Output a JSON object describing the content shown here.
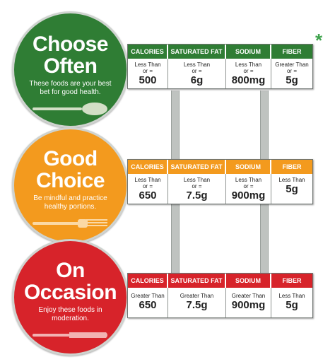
{
  "columns": [
    "CALORIES",
    "SATURATED FAT",
    "SODIUM",
    "FIBER"
  ],
  "asterisk": "*",
  "tiers": [
    {
      "title_line1": "Choose",
      "title_line2": "Often",
      "subtitle": "These foods are your best bet for good health.",
      "utensil": "spoon-icon",
      "color": "#2f7d34",
      "values": [
        {
          "prefix": "Less Than",
          "op": "or =",
          "amount": "500"
        },
        {
          "prefix": "Less Than",
          "op": "or =",
          "amount": "6g"
        },
        {
          "prefix": "Less Than",
          "op": "or =",
          "amount": "800mg"
        },
        {
          "prefix": "Greater Than",
          "op": "or =",
          "amount": "5g"
        }
      ]
    },
    {
      "title_line1": "Good",
      "title_line2": "Choice",
      "subtitle": "Be mindful and practice healthy portions.",
      "utensil": "fork-icon",
      "color": "#f39a1e",
      "values": [
        {
          "prefix": "Less Than",
          "op": "or =",
          "amount": "650"
        },
        {
          "prefix": "Less Than",
          "op": "or =",
          "amount": "7.5g"
        },
        {
          "prefix": "Less Than",
          "op": "or =",
          "amount": "900mg"
        },
        {
          "prefix": "Less Than",
          "op": "",
          "amount": "5g"
        }
      ]
    },
    {
      "title_line1": "On",
      "title_line2": "Occasion",
      "subtitle": "Enjoy these foods in moderation.",
      "utensil": "knife-icon",
      "color": "#d7232a",
      "values": [
        {
          "prefix": "Greater Than",
          "op": "",
          "amount": "650"
        },
        {
          "prefix": "Greater Than",
          "op": "",
          "amount": "7.5g"
        },
        {
          "prefix": "Greater Than",
          "op": "",
          "amount": "900mg"
        },
        {
          "prefix": "Less Than",
          "op": "",
          "amount": "5g"
        }
      ]
    }
  ]
}
